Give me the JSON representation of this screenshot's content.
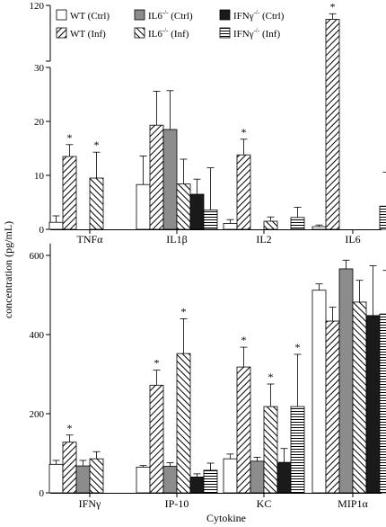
{
  "figure": {
    "ylabel": "concentration (pg/mL)",
    "xlabel": "Cytokine"
  },
  "legend": [
    {
      "base": "WT",
      "sup": "",
      "suffix": " (Ctrl)",
      "pattern": "white"
    },
    {
      "base": "IL6",
      "sup": "-/-",
      "suffix": " (Ctrl)",
      "pattern": "gray"
    },
    {
      "base": "IFNγ",
      "sup": "-/-",
      "suffix": " (Ctrl)",
      "pattern": "black"
    },
    {
      "base": "WT",
      "sup": "",
      "suffix": " (Inf)",
      "pattern": "hatch-right"
    },
    {
      "base": "IL6",
      "sup": "-/-",
      "suffix": " (Inf)",
      "pattern": "hatch-left"
    },
    {
      "base": "IFNγ",
      "sup": "-/-",
      "suffix": " (Inf)",
      "pattern": "hstripes"
    }
  ],
  "chart_data": [
    {
      "type": "bar",
      "panel": "top",
      "categories": [
        "TNFα",
        "IL1β",
        "IL2",
        "IL6"
      ],
      "series_order": [
        "WT (Ctrl)",
        "WT (Inf)",
        "IL6-/- (Ctrl)",
        "IL6-/- (Inf)",
        "IFNγ-/- (Ctrl)",
        "IFNγ-/- (Inf)"
      ],
      "values": [
        [
          1.3,
          13.5,
          null,
          9.5,
          null,
          null
        ],
        [
          8.3,
          19.3,
          18.5,
          8.4,
          6.5,
          3.6
        ],
        [
          1.1,
          13.8,
          null,
          1.5,
          null,
          2.2
        ],
        [
          0.5,
          110,
          null,
          null,
          null,
          4.3
        ]
      ],
      "errors": [
        [
          1.2,
          2.2,
          null,
          4.8,
          null,
          null
        ],
        [
          5.3,
          6.3,
          7.2,
          4.6,
          2.8,
          7.8
        ],
        [
          0.7,
          2.9,
          null,
          0.8,
          null,
          1.9
        ],
        [
          0.3,
          4,
          null,
          null,
          null,
          6.3
        ]
      ],
      "significant": [
        [
          false,
          true,
          false,
          true,
          false,
          false
        ],
        [
          false,
          false,
          false,
          false,
          false,
          false
        ],
        [
          false,
          true,
          false,
          false,
          false,
          false
        ],
        [
          false,
          true,
          false,
          false,
          false,
          false
        ]
      ],
      "yticks_lower": [
        0,
        10,
        20,
        30
      ],
      "yticks_upper": [
        30,
        120
      ],
      "axis_break": [
        30,
        80
      ],
      "ylim": [
        0,
        120
      ]
    },
    {
      "type": "bar",
      "panel": "bottom",
      "categories": [
        "IFNγ",
        "IP-10",
        "KC",
        "MIP1α"
      ],
      "series_order": [
        "WT (Ctrl)",
        "WT (Inf)",
        "IL6-/- (Ctrl)",
        "IL6-/- (Inf)",
        "IFNγ-/- (Ctrl)",
        "IFNγ-/- (Inf)"
      ],
      "values": [
        [
          72,
          128,
          68,
          86,
          null,
          null
        ],
        [
          65,
          272,
          67,
          352,
          40,
          57
        ],
        [
          86,
          318,
          80,
          218,
          77,
          218
        ],
        [
          512,
          434,
          566,
          482,
          448,
          452
        ]
      ],
      "errors": [
        [
          10,
          18,
          14,
          18,
          null,
          null
        ],
        [
          4,
          38,
          9,
          88,
          8,
          18
        ],
        [
          12,
          50,
          10,
          57,
          35,
          132
        ],
        [
          16,
          35,
          22,
          55,
          126,
          110
        ]
      ],
      "significant": [
        [
          false,
          true,
          false,
          false,
          false,
          false
        ],
        [
          false,
          true,
          false,
          true,
          false,
          false
        ],
        [
          false,
          true,
          false,
          true,
          false,
          true
        ],
        [
          false,
          false,
          false,
          false,
          false,
          false
        ]
      ],
      "yticks": [
        0,
        200,
        400,
        600
      ],
      "ylim": [
        0,
        630
      ]
    }
  ]
}
